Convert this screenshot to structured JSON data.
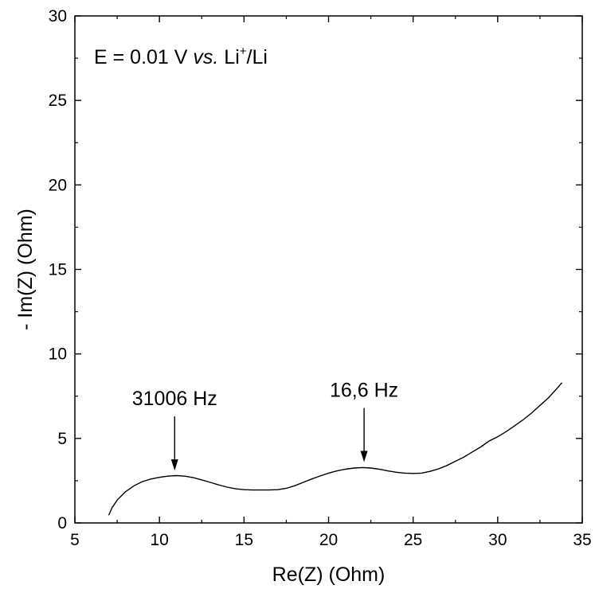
{
  "chart_data": {
    "type": "line",
    "title": "",
    "annotation_main": {
      "prefix": "E = 0.01 V ",
      "italic": "vs.",
      "mid": " Li",
      "sup": "+",
      "suffix": "/Li"
    },
    "xlabel": "Re(Z) (Ohm)",
    "ylabel": "- Im(Z) (Ohm)",
    "xlim": [
      5,
      35
    ],
    "ylim": [
      0,
      30
    ],
    "x_ticks": [
      5,
      10,
      15,
      20,
      25,
      30,
      35
    ],
    "y_ticks": [
      0,
      5,
      10,
      15,
      20,
      25,
      30
    ],
    "grid": false,
    "series": [
      {
        "x": [
          7.0,
          7.2,
          7.5,
          8.0,
          8.5,
          9.0,
          9.5,
          10.0,
          10.5,
          11.0,
          11.5,
          12.0,
          12.5,
          13.0,
          13.5,
          14.0,
          14.5,
          15.0,
          15.5,
          16.0,
          16.5,
          17.0,
          17.5,
          18.0,
          18.5,
          19.0,
          19.5,
          20.0,
          20.5,
          21.0,
          21.5,
          22.0,
          22.5,
          23.0,
          23.5,
          24.0,
          24.5,
          25.0,
          25.5,
          26.0,
          26.5,
          27.0,
          27.5,
          28.0,
          28.5,
          29.0,
          29.5,
          30.0,
          30.5,
          31.0,
          31.5,
          32.0,
          32.5,
          33.0,
          33.5,
          33.8
        ],
        "y": [
          0.45,
          0.9,
          1.35,
          1.85,
          2.2,
          2.45,
          2.6,
          2.7,
          2.77,
          2.8,
          2.77,
          2.68,
          2.55,
          2.4,
          2.25,
          2.12,
          2.02,
          1.97,
          1.95,
          1.95,
          1.95,
          1.97,
          2.05,
          2.2,
          2.4,
          2.6,
          2.78,
          2.95,
          3.08,
          3.18,
          3.25,
          3.28,
          3.25,
          3.18,
          3.08,
          3.0,
          2.95,
          2.93,
          2.95,
          3.05,
          3.2,
          3.4,
          3.65,
          3.9,
          4.2,
          4.5,
          4.85,
          5.1,
          5.4,
          5.75,
          6.1,
          6.5,
          6.95,
          7.4,
          7.95,
          8.3
        ]
      }
    ],
    "annotations": [
      {
        "text": "31006 Hz",
        "x": 10.9,
        "y": 3.1
      },
      {
        "text": "16,6 Hz",
        "x": 22.1,
        "y": 3.6
      }
    ]
  }
}
